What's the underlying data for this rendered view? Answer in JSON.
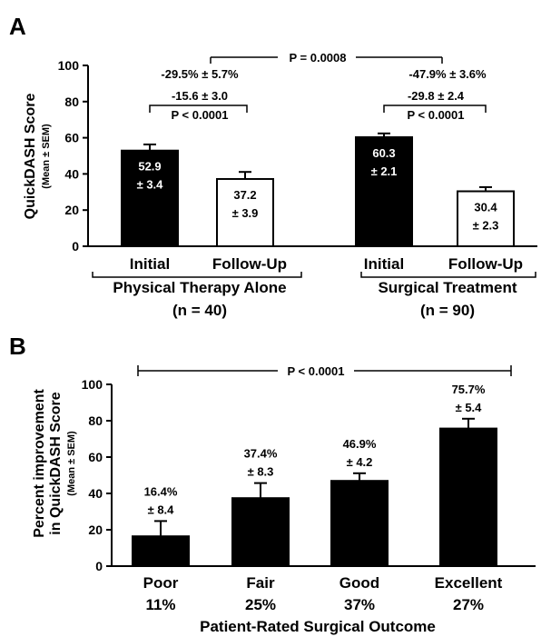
{
  "panels": {
    "a_label": "A",
    "b_label": "B"
  },
  "chart_data": [
    {
      "type": "bar",
      "ylabel": "QuickDASH Score",
      "ylabel_sub": "(Mean ± SEM)",
      "ylim": [
        0,
        100
      ],
      "yticks": [
        "0",
        "20",
        "40",
        "60",
        "80",
        "100"
      ],
      "groups": [
        {
          "name": "Physical Therapy Alone",
          "n": "(n = 40)"
        },
        {
          "name": "Surgical Treatment",
          "n": "(n = 90)"
        }
      ],
      "bars": [
        {
          "category": "Initial",
          "group": 0,
          "value": 52.9,
          "sem": 3.4,
          "fill": "black",
          "value_label": "52.9",
          "sem_label": "± 3.4"
        },
        {
          "category": "Follow-Up",
          "group": 0,
          "value": 37.2,
          "sem": 3.9,
          "fill": "white",
          "value_label": "37.2",
          "sem_label": "± 3.9"
        },
        {
          "category": "Initial",
          "group": 1,
          "value": 60.3,
          "sem": 2.1,
          "fill": "black",
          "value_label": "60.3",
          "sem_label": "± 2.1"
        },
        {
          "category": "Follow-Up",
          "group": 1,
          "value": 30.4,
          "sem": 2.3,
          "fill": "white",
          "value_label": "30.4",
          "sem_label": "± 2.3"
        }
      ],
      "annotations": {
        "between_groups_p": "P = 0.0008",
        "group_pct": [
          "-29.5% ± 5.7%",
          "-47.9% ± 3.6%"
        ],
        "group_diff": [
          "-15.6 ± 3.0",
          "-29.8 ± 2.4"
        ],
        "group_p": [
          "P < 0.0001",
          "P < 0.0001"
        ]
      }
    },
    {
      "type": "bar",
      "ylabel": "Percent improvement",
      "ylabel2": "in QuickDASH Score",
      "ylabel_sub": "(Mean ± SEM)",
      "xlabel": "Patient-Rated Surgical Outcome",
      "ylim": [
        0,
        100
      ],
      "yticks": [
        "0",
        "20",
        "40",
        "60",
        "80",
        "100"
      ],
      "categories": [
        "Poor",
        "Fair",
        "Good",
        "Excellent"
      ],
      "category_pct": [
        "11%",
        "25%",
        "37%",
        "27%"
      ],
      "values": [
        16.4,
        37.4,
        46.9,
        75.7
      ],
      "sem": [
        8.4,
        8.3,
        4.2,
        5.4
      ],
      "value_labels": [
        "16.4%",
        "37.4%",
        "46.9%",
        "75.7%"
      ],
      "sem_labels": [
        "± 8.4",
        "± 8.3",
        "± 4.2",
        "± 5.4"
      ],
      "overall_p": "P < 0.0001"
    }
  ]
}
